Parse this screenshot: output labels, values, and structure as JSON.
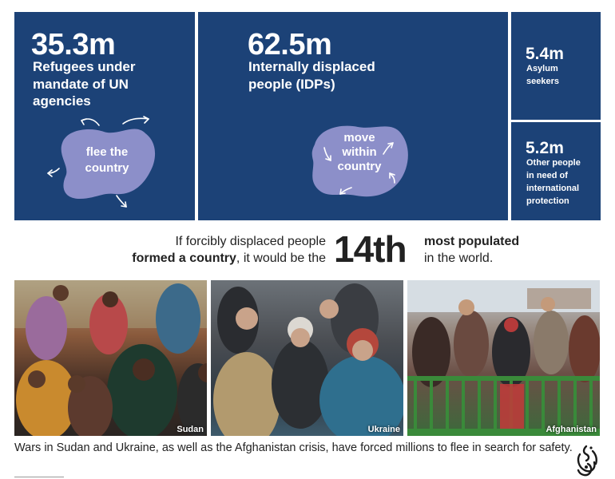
{
  "panels": {
    "refugees": {
      "number": "35.3m",
      "label_lines": [
        "Refugees under",
        "mandate of UN",
        "agencies"
      ],
      "blob_lines": [
        "flee the",
        "country"
      ]
    },
    "idps": {
      "number": "62.5m",
      "label_lines": [
        "Internally displaced",
        "people (IDPs)"
      ],
      "blob_lines": [
        "move",
        "within",
        "country"
      ]
    },
    "asylum": {
      "number": "5.4m",
      "label_lines": [
        "Asylum",
        "seekers"
      ]
    },
    "other": {
      "number": "5.2m",
      "label_lines": [
        "Other people",
        "in need of",
        "international",
        "protection"
      ]
    }
  },
  "statement": {
    "line1": "If forcibly displaced people",
    "line2_bold": "formed a country",
    "line2_rest": ", it would be the",
    "rank": "14th",
    "right_bold": "most populated",
    "right_rest": "in the world."
  },
  "photos": [
    {
      "caption": "Sudan"
    },
    {
      "caption": "Ukraine"
    },
    {
      "caption": "Afghanistan"
    }
  ],
  "footer": {
    "caption": "Wars in Sudan and Ukraine, as well as the Afghanistan crisis, have forced millions to flee in search for safety."
  },
  "colors": {
    "panel": "#1c4277",
    "blob": "#8c8fc9",
    "text_dark": "#222222"
  },
  "icons": {
    "logo": "al-jazeera-logo-icon"
  }
}
